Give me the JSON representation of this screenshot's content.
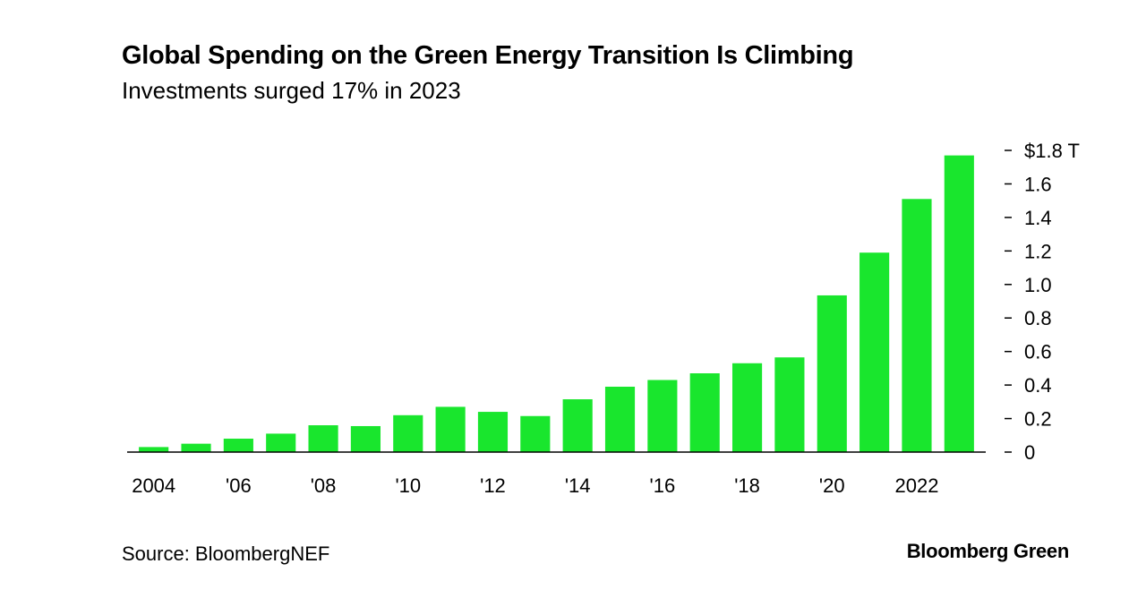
{
  "title": "Global Spending on the Green Energy Transition Is Climbing",
  "subtitle": "Investments surged 17% in 2023",
  "source": "Source: BloombergNEF",
  "brand": "Bloomberg Green",
  "colors": {
    "bar": "#19e62d",
    "axis": "#000000"
  },
  "chart_data": {
    "type": "bar",
    "categories": [
      "2004",
      "2005",
      "2006",
      "2007",
      "2008",
      "2009",
      "2010",
      "2011",
      "2012",
      "2013",
      "2014",
      "2015",
      "2016",
      "2017",
      "2018",
      "2019",
      "2020",
      "2021",
      "2022",
      "2023"
    ],
    "values": [
      0.03,
      0.05,
      0.08,
      0.11,
      0.16,
      0.155,
      0.22,
      0.27,
      0.24,
      0.215,
      0.315,
      0.39,
      0.43,
      0.47,
      0.53,
      0.565,
      0.935,
      1.19,
      1.51,
      1.77
    ],
    "x_tick_labels": [
      {
        "category": "2004",
        "label": "2004"
      },
      {
        "category": "2006",
        "label": "'06"
      },
      {
        "category": "2008",
        "label": "'08"
      },
      {
        "category": "2010",
        "label": "'10"
      },
      {
        "category": "2012",
        "label": "'12"
      },
      {
        "category": "2014",
        "label": "'14"
      },
      {
        "category": "2016",
        "label": "'16"
      },
      {
        "category": "2018",
        "label": "'18"
      },
      {
        "category": "2020",
        "label": "'20"
      },
      {
        "category": "2022",
        "label": "2022"
      }
    ],
    "y_ticks": [
      {
        "value": 0,
        "label": "0"
      },
      {
        "value": 0.2,
        "label": "0.2"
      },
      {
        "value": 0.4,
        "label": "0.4"
      },
      {
        "value": 0.6,
        "label": "0.6"
      },
      {
        "value": 0.8,
        "label": "0.8"
      },
      {
        "value": 1.0,
        "label": "1.0"
      },
      {
        "value": 1.2,
        "label": "1.2"
      },
      {
        "value": 1.4,
        "label": "1.4"
      },
      {
        "value": 1.6,
        "label": "1.6"
      },
      {
        "value": 1.8,
        "label": "$1.8 T"
      }
    ],
    "ylim": [
      0,
      1.8
    ],
    "y_axis_position": "right",
    "grid": false,
    "xlabel": "",
    "ylabel": ""
  }
}
